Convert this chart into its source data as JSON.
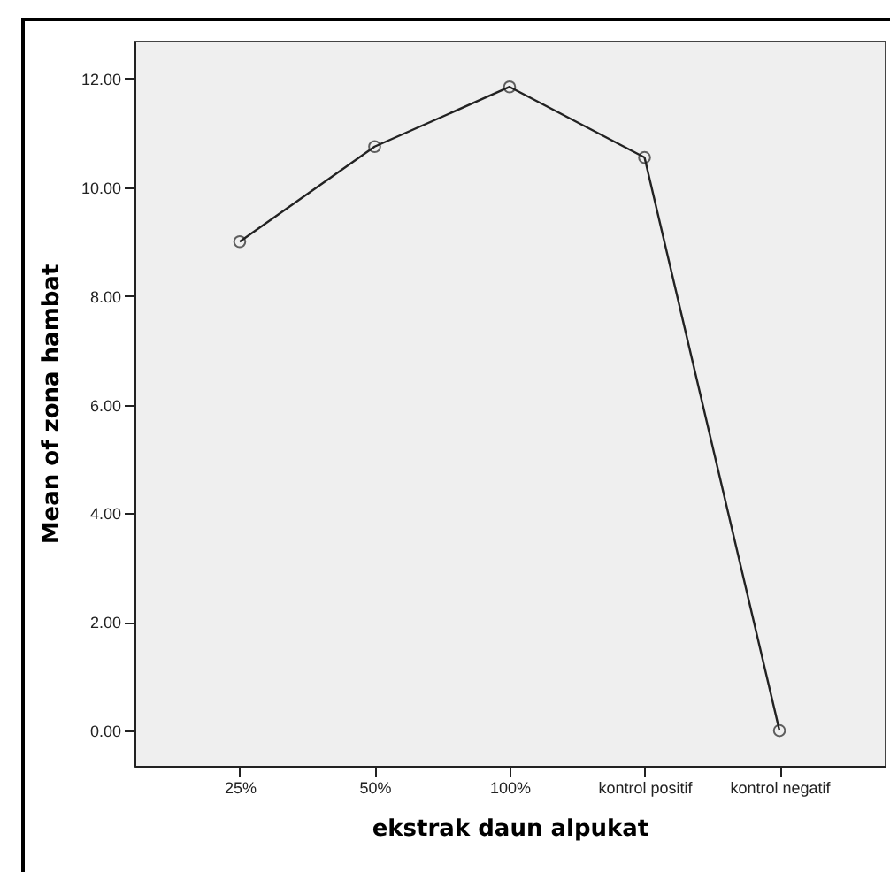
{
  "chart_data": {
    "type": "line",
    "xlabel": "ekstrak daun alpukat",
    "ylabel": "Mean of zona hambat",
    "categories": [
      "25%",
      "50%",
      "100%",
      "kontrol positif",
      "kontrol negatif"
    ],
    "series": [
      {
        "color": "#222222",
        "values": [
          9.0,
          10.75,
          11.85,
          10.55,
          0.0
        ]
      }
    ],
    "ylim": [
      -0.65,
      12.7
    ],
    "yticks": [
      {
        "value": 0,
        "label": "0.00"
      },
      {
        "value": 2,
        "label": "2.00"
      },
      {
        "value": 4,
        "label": "4.00"
      },
      {
        "value": 6,
        "label": "6.00"
      },
      {
        "value": 8,
        "label": "8.00"
      },
      {
        "value": 10,
        "label": "10.00"
      },
      {
        "value": 12,
        "label": "12.00"
      }
    ],
    "grid": false,
    "marker": "circle",
    "line_style": "solid",
    "legend": false
  }
}
